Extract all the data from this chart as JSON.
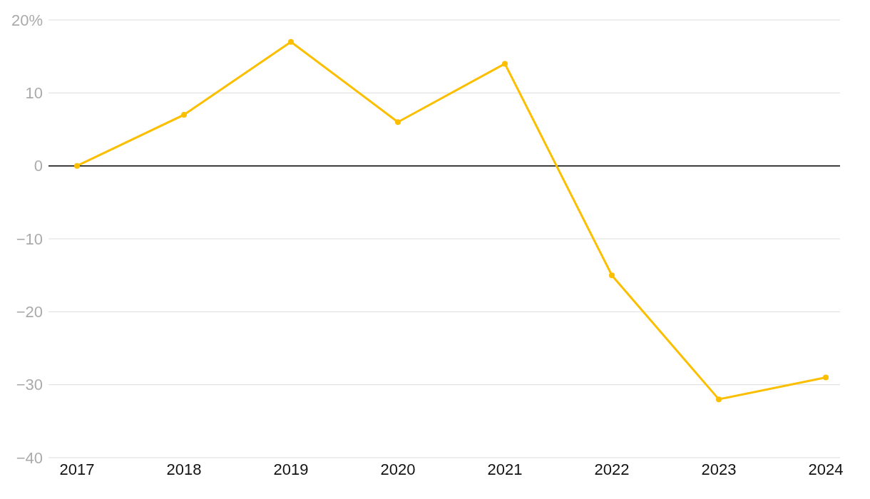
{
  "chart_data": {
    "type": "line",
    "categories": [
      "2017",
      "2018",
      "2019",
      "2020",
      "2021",
      "2022",
      "2023",
      "2024"
    ],
    "series": [
      {
        "color": "#fbbf00",
        "values": [
          0,
          7,
          17,
          6,
          14,
          -15,
          -32,
          -29
        ]
      }
    ],
    "ylim": [
      -40,
      20
    ],
    "yticks": [
      {
        "value": -40,
        "label": "−40"
      },
      {
        "value": -30,
        "label": "−30"
      },
      {
        "value": -20,
        "label": "−20"
      },
      {
        "value": -10,
        "label": "−10"
      },
      0,
      10,
      {
        "value": 20,
        "label": "20%"
      }
    ],
    "grid": "y",
    "marker": "circle",
    "line_style": "solid",
    "legend": false,
    "ref_lines": [
      {
        "axis": "y",
        "value": 0,
        "color": "#000000"
      }
    ]
  }
}
